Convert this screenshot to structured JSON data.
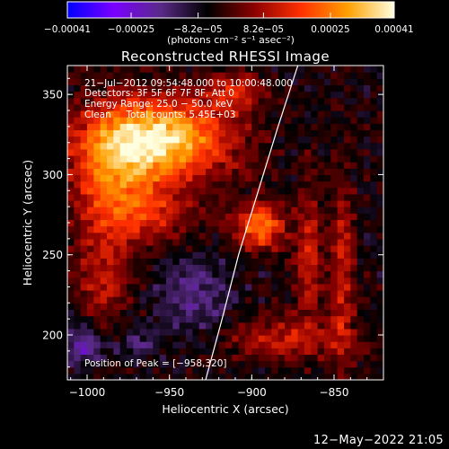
{
  "chart_data": {
    "type": "heatmap",
    "title": "Reconstructed RHESSI Image",
    "xlabel": "Heliocentric X (arcsec)",
    "ylabel": "Heliocentric Y (arcsec)",
    "xlim": [
      -1012,
      -820
    ],
    "ylim": [
      172,
      368
    ],
    "x_ticks": [
      -1000,
      -950,
      -900,
      -850
    ],
    "y_ticks": [
      200,
      250,
      300,
      350
    ],
    "x_tick_labels": [
      "−1000",
      "−950",
      "−900",
      "−850"
    ],
    "y_tick_labels": [
      "200",
      "250",
      "300",
      "350"
    ],
    "colorbar": {
      "min": -0.00041,
      "max": 0.00041,
      "tick_values": [
        -0.00041,
        -0.00025,
        -8.2e-05,
        8.2e-05,
        0.00025,
        0.00041
      ],
      "tick_labels": [
        "−0.00041",
        "−0.00025",
        "−8.2e−05",
        "8.2e−05",
        "0.00025",
        "0.00041"
      ],
      "units_label": "(photons cm⁻² s⁻¹ asec⁻²)",
      "colormap": [
        "#0000ff",
        "#7a00ff",
        "#5a2a88",
        "#000000",
        "#8b0000",
        "#ff3000",
        "#ffa000",
        "#ffffe0"
      ]
    },
    "info_lines": [
      "21−Jul−2012 09:54:48.000 to 10:00:48.000",
      "Detectors: 3F 5F 6F 7F 8F, Att 0",
      "Energy Range: 25.0 − 50.0 keV",
      "Clean     Total counts: 5.45E+03"
    ],
    "peak_label": "Position of Peak = [−958,320]",
    "peak": [
      -958,
      320
    ],
    "limb_arc": [
      [
        -928,
        172
      ],
      [
        -918,
        210
      ],
      [
        -908,
        250
      ],
      [
        -896,
        290
      ],
      [
        -884,
        330
      ],
      [
        -872,
        368
      ]
    ],
    "sources": [
      {
        "x": -955,
        "y": 322,
        "sx": 30,
        "sy": 18,
        "amp": 1.0
      },
      {
        "x": -985,
        "y": 300,
        "sx": 18,
        "sy": 26,
        "amp": 0.55
      },
      {
        "x": -960,
        "y": 275,
        "sx": 22,
        "sy": 12,
        "amp": 0.35
      },
      {
        "x": -990,
        "y": 235,
        "sx": 12,
        "sy": 22,
        "amp": 0.35
      },
      {
        "x": -895,
        "y": 268,
        "sx": 10,
        "sy": 10,
        "amp": 0.75
      },
      {
        "x": -910,
        "y": 352,
        "sx": 12,
        "sy": 8,
        "amp": 0.4
      },
      {
        "x": -865,
        "y": 250,
        "sx": 6,
        "sy": 30,
        "amp": 0.42
      },
      {
        "x": -845,
        "y": 240,
        "sx": 5,
        "sy": 45,
        "amp": 0.38
      },
      {
        "x": -880,
        "y": 198,
        "sx": 28,
        "sy": 9,
        "amp": 0.38
      },
      {
        "x": -970,
        "y": 195,
        "sx": 10,
        "sy": 7,
        "amp": -0.25
      },
      {
        "x": -1002,
        "y": 195,
        "sx": 8,
        "sy": 10,
        "amp": -0.4
      },
      {
        "x": -935,
        "y": 225,
        "sx": 16,
        "sy": 18,
        "amp": -0.3
      }
    ]
  },
  "footer_timestamp": "12−May−2022 21:05"
}
